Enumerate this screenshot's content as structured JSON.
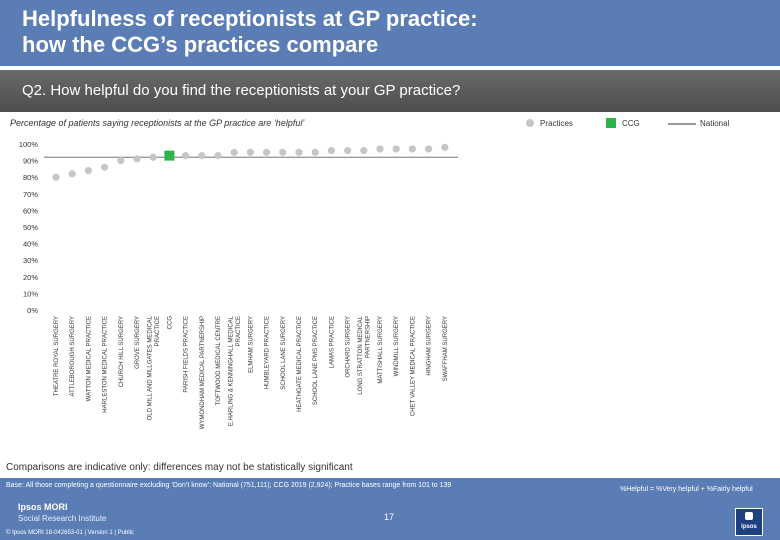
{
  "header": {
    "title_line1": "Helpfulness of receptionists at GP practice:",
    "title_line2": "how the CCG’s practices compare"
  },
  "question": "Q2. How helpful do you find the receptionists at your GP practice?",
  "subtitle": "Percentage of patients saying receptionists at the GP practice are ‘helpful’",
  "legend": {
    "practices": "Practices",
    "ccg": "CCG",
    "national": "National"
  },
  "colors": {
    "header": "#5b7db6",
    "practice": "#c6c6c6",
    "ccg": "#2db34a",
    "national": "#9a9a9a"
  },
  "chart_data": {
    "type": "scatter",
    "title": "Percentage of patients saying receptionists at the GP practice are ‘helpful’",
    "xlabel": "",
    "ylabel": "",
    "ylim": [
      0,
      100
    ],
    "yticks": [
      0,
      10,
      20,
      30,
      40,
      50,
      60,
      70,
      80,
      90,
      100
    ],
    "ytick_labels": [
      "0%",
      "10%",
      "20%",
      "30%",
      "40%",
      "50%",
      "60%",
      "70%",
      "80%",
      "90%",
      "100%"
    ],
    "categories": [
      [
        "THEATRE ROYAL SURGERY"
      ],
      [
        "ATTLEBOROUGH SURGERY"
      ],
      [
        "WATTON MEDICAL PRACTICE"
      ],
      [
        "HARLESTON MEDICAL PRACTICE"
      ],
      [
        "CHURCH HILL SURGERY"
      ],
      [
        "GROVE SURGERY"
      ],
      [
        "OLD MILL AND MILLGATES MEDICAL",
        "PRACTICE"
      ],
      [
        "CCG"
      ],
      [
        "PARISH FIELDS PRACTICE"
      ],
      [
        "WYMONDHAM MEDICAL PARTNERSHIP"
      ],
      [
        "TOFTWOOD MEDICAL CENTRE"
      ],
      [
        "E.HARLING & KENNINGHALL MEDICAL",
        "PRACTICE"
      ],
      [
        "ELMHAM SURGERY"
      ],
      [
        "HUMBLEYARD PRACTICE"
      ],
      [
        "SCHOOL LANE SURGERY"
      ],
      [
        "HEATHGATE MEDICAL PRACTICE"
      ],
      [
        "SCHOOL LANE PMS PRACTICE"
      ],
      [
        "LAMAS PRACTICE"
      ],
      [
        "ORCHARD SURGERY"
      ],
      [
        "LONG STRATTON MEDICAL",
        "PARTNERSHIP"
      ],
      [
        "MATTISHALL SURGERY"
      ],
      [
        "WINDMILL SURGERY"
      ],
      [
        "CHET VALLEY MEDICAL PRACTICE"
      ],
      [
        "HINGHAM SURGERY"
      ],
      [
        "SWAFFHAM SURGERY"
      ]
    ],
    "values": [
      80,
      82,
      84,
      86,
      90,
      91,
      92,
      93,
      93,
      93,
      93,
      95,
      95,
      95,
      95,
      95,
      95,
      96,
      96,
      96,
      97,
      97,
      97,
      97,
      98
    ],
    "ccg_index": 7,
    "national": 92
  },
  "note": "Comparisons are indicative only: differences may not be statistically significant",
  "footer": {
    "base": "Base: All those completing a questionnaire excluding ‘Don’t know’: National (751,111); CCG 2019 (2,924); Practice bases range from 101 to 139",
    "helpful_def": "%Helpful = %Very helpful + %Fairly helpful",
    "logo_line1": "Ipsos MORI",
    "logo_line2": "Social Research Institute",
    "copyright": "© Ipsos MORI    18-042653-01 | Version 1 | Public",
    "page": "17",
    "badge": "Ipsos"
  }
}
